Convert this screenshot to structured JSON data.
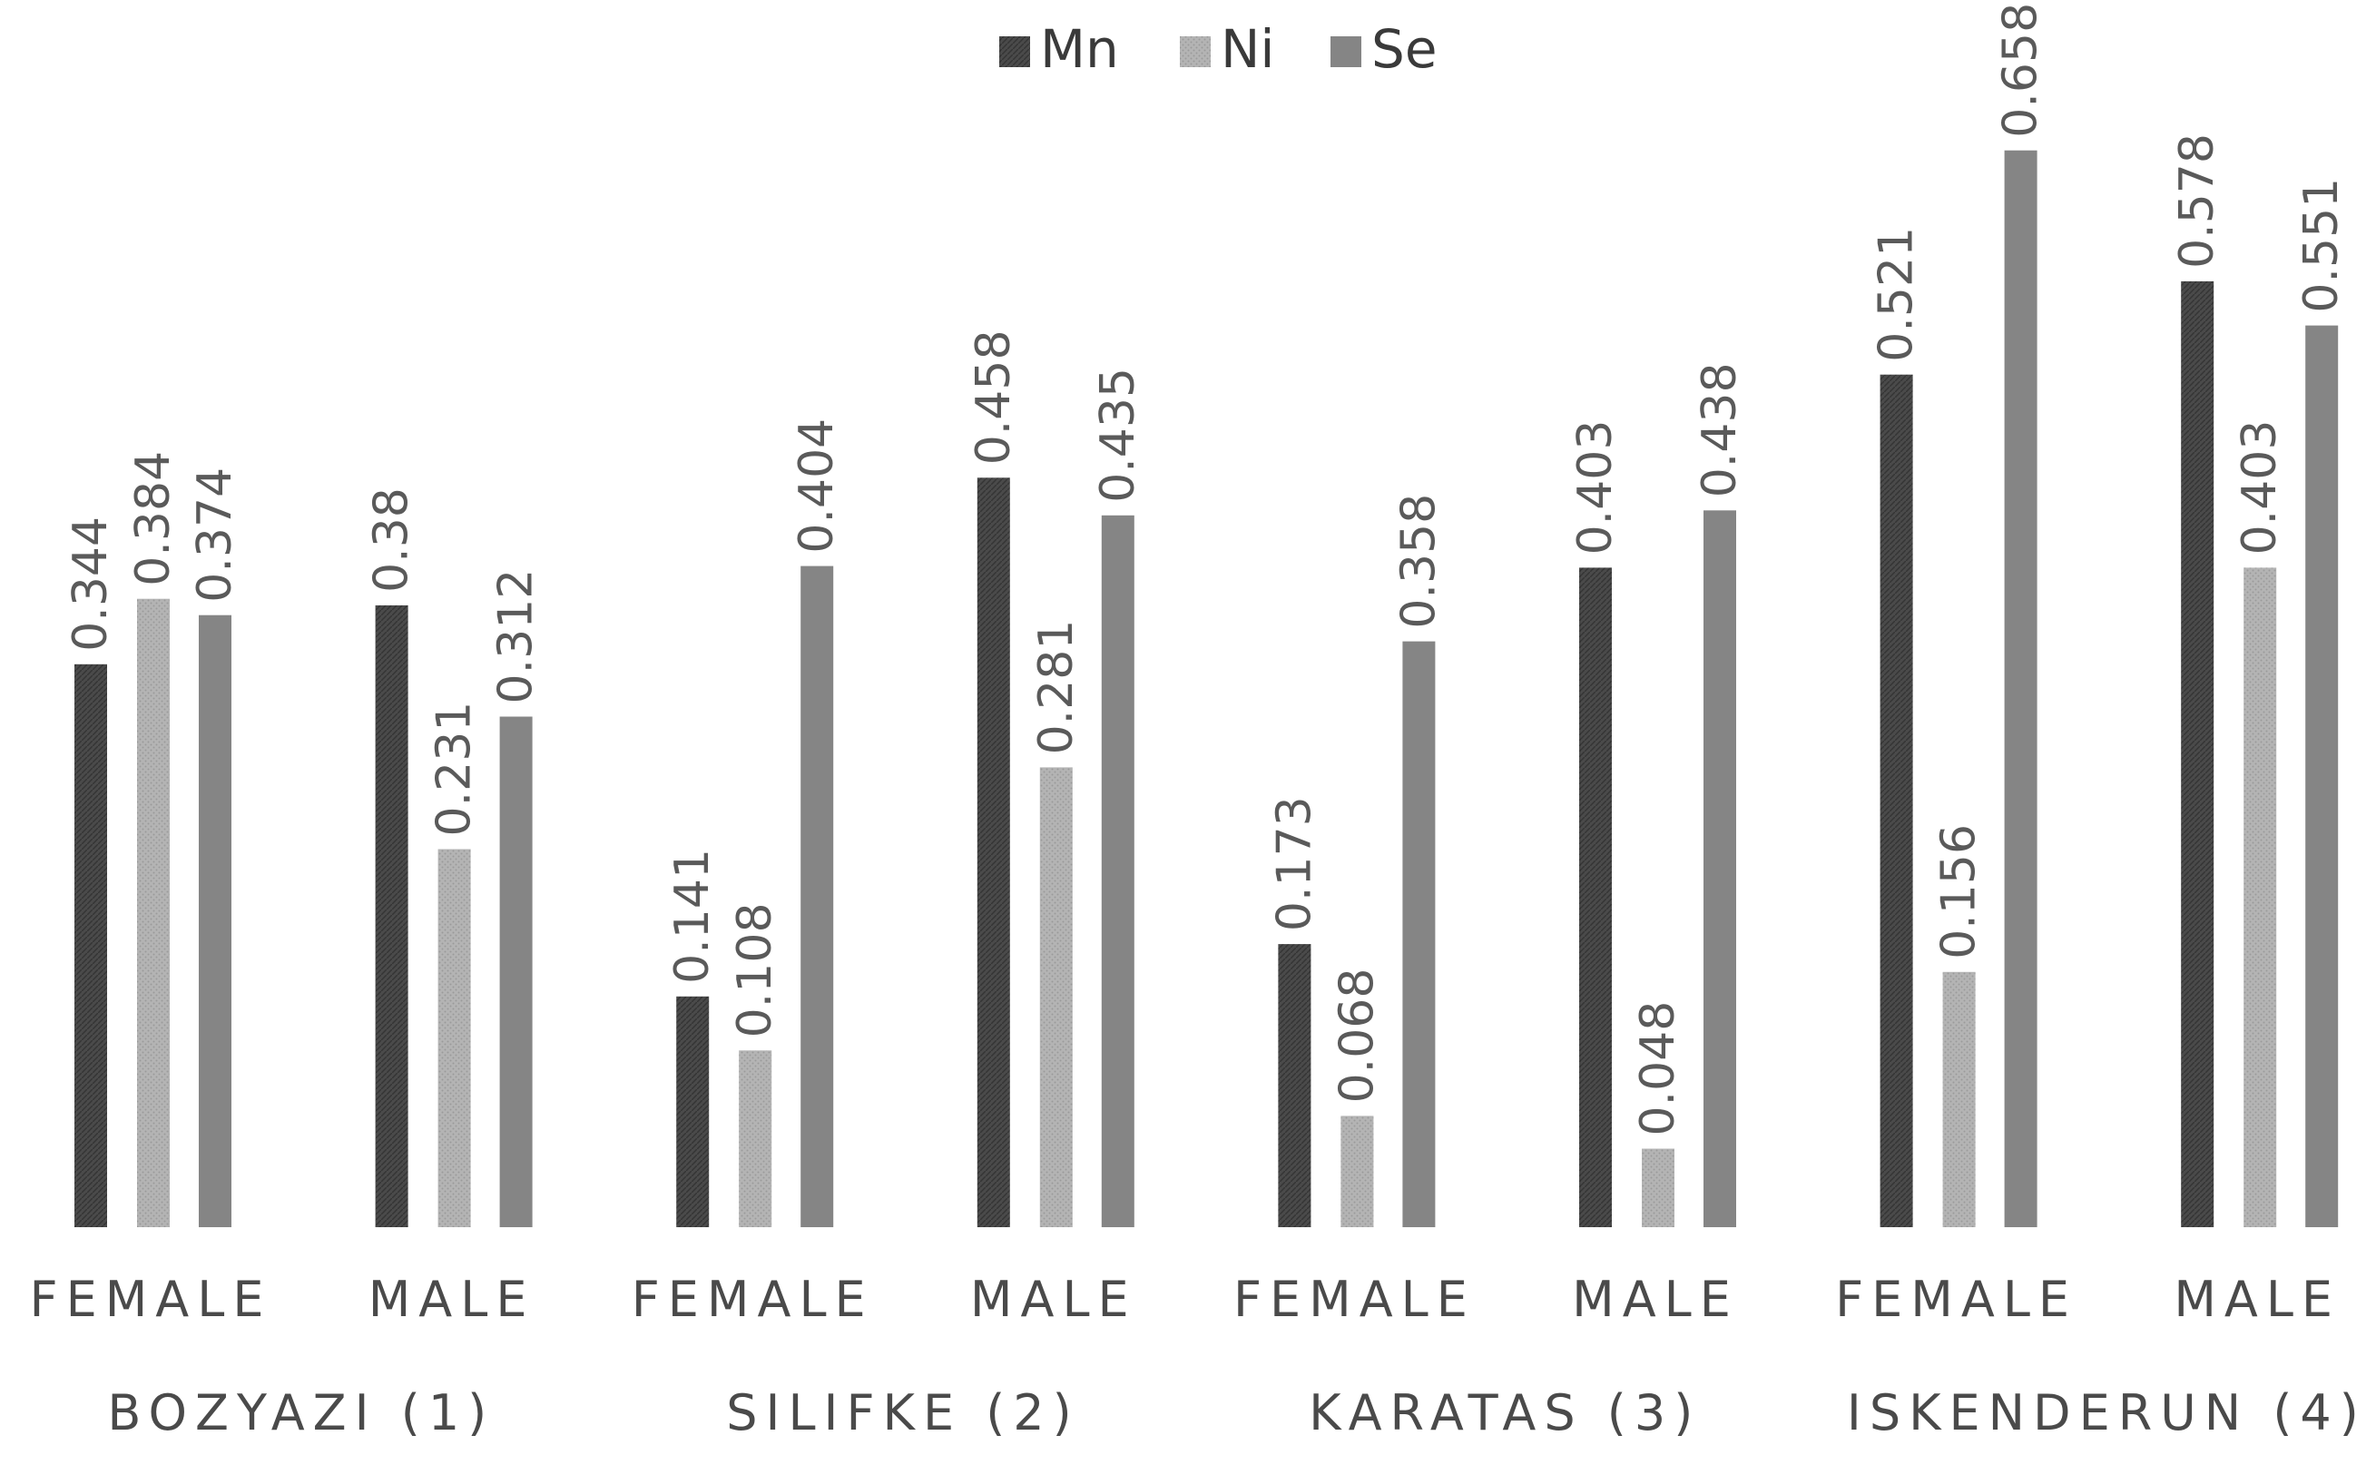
{
  "chart_data": {
    "type": "bar",
    "title": "",
    "xlabel": "",
    "ylabel": "",
    "ylim": [
      0,
      0.7
    ],
    "grid": false,
    "legend_position": "top-center",
    "groups": [
      "BOZYAZI (1)",
      "SILIFKE (2)",
      "KARATAS (3)",
      "ISKENDERUN (4)"
    ],
    "categories": [
      "FEMALE",
      "MALE",
      "FEMALE",
      "MALE",
      "FEMALE",
      "MALE",
      "FEMALE",
      "MALE"
    ],
    "series": [
      {
        "name": "Mn",
        "color": "#4a4a4a",
        "pattern": "dark-crosshatch",
        "values": [
          0.344,
          0.38,
          0.141,
          0.458,
          0.173,
          0.403,
          0.521,
          0.578
        ],
        "labels": [
          "0.344",
          "0.38",
          "0.141",
          "0.458",
          "0.173",
          "0.403",
          "0.521",
          "0.578"
        ]
      },
      {
        "name": "Ni",
        "color": "#b4b4b4",
        "pattern": "light-dotted",
        "values": [
          0.384,
          0.231,
          0.108,
          0.281,
          0.068,
          0.048,
          0.156,
          0.403
        ],
        "labels": [
          "0.384",
          "0.231",
          "0.108",
          "0.281",
          "0.068",
          "0.048",
          "0.156",
          "0.403"
        ]
      },
      {
        "name": "Se",
        "color": "#858585",
        "pattern": "solid",
        "values": [
          0.374,
          0.312,
          0.404,
          0.435,
          0.358,
          0.438,
          0.658,
          0.551
        ],
        "labels": [
          "0.374",
          "0.312",
          "0.404",
          "0.435",
          "0.358",
          "0.438",
          "0.658",
          "0.551"
        ]
      }
    ]
  }
}
